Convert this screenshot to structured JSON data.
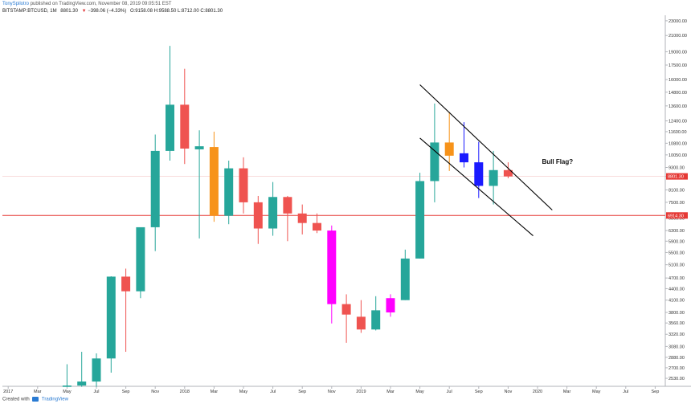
{
  "header": {
    "author": "TonySpilotro",
    "published": " published on TradingView.com, November 08, 2019 09:05:51 EST",
    "symbol": "BITSTAMP:BTCUSD, 1M",
    "last": "8801.30",
    "change_arrow": "▼",
    "change": "−398.06 (−4.33%)",
    "ohlc": "O:9158.08 H:9588.50 L:8712.00 C:8801.30"
  },
  "footer": {
    "prefix": "Created with",
    "brand": "TradingView"
  },
  "colors": {
    "up": "#26a69a",
    "down": "#ef5350",
    "orange": "#f7931a",
    "blue": "#1a1aff",
    "magenta": "#ff00ff",
    "price_line": "#e53935",
    "trendline": "#000000"
  },
  "chart_data": {
    "type": "candlestick",
    "symbol": "BITSTAMP:BTCUSD",
    "interval": "1M",
    "y_scale": "log",
    "ylim": [
      2420,
      23800
    ],
    "y_ticks": [
      2530,
      2700,
      2880,
      3080,
      3320,
      3560,
      3800,
      4100,
      4400,
      4700,
      5100,
      5500,
      5900,
      6300,
      6800,
      7500,
      8100,
      8800,
      9300,
      10050,
      10800,
      11600,
      12400,
      13600,
      14800,
      16000,
      17500,
      19000,
      21000,
      23000
    ],
    "y_tick_labels": [
      "2530.00",
      "2700.00",
      "2880.00",
      "3080.00",
      "3320.00",
      "3560.00",
      "3800.00",
      "4100.00",
      "4400.00",
      "4700.00",
      "5100.00",
      "5500.00",
      "5900.00",
      "6300.00",
      "6800.00",
      "7500.00",
      "8100.00",
      "8800.00",
      "9300.00",
      "10050.00",
      "10800.00",
      "11600.00",
      "12400.00",
      "13600.00",
      "14800.00",
      "16000.00",
      "17500.00",
      "19000.00",
      "21000.00",
      "23000.00"
    ],
    "x_labels": [
      {
        "m": 0,
        "label": "2017"
      },
      {
        "m": 2,
        "label": "Mar"
      },
      {
        "m": 4,
        "label": "May"
      },
      {
        "m": 6,
        "label": "Jul"
      },
      {
        "m": 8,
        "label": "Sep"
      },
      {
        "m": 10,
        "label": "Nov"
      },
      {
        "m": 12,
        "label": "2018"
      },
      {
        "m": 14,
        "label": "Mar"
      },
      {
        "m": 16,
        "label": "May"
      },
      {
        "m": 18,
        "label": "Jul"
      },
      {
        "m": 20,
        "label": "Sep"
      },
      {
        "m": 22,
        "label": "Nov"
      },
      {
        "m": 24,
        "label": "2019"
      },
      {
        "m": 26,
        "label": "Mar"
      },
      {
        "m": 28,
        "label": "May"
      },
      {
        "m": 30,
        "label": "Jul"
      },
      {
        "m": 32,
        "label": "Sep"
      },
      {
        "m": 34,
        "label": "Nov"
      },
      {
        "m": 36,
        "label": "2020"
      },
      {
        "m": 38,
        "label": "Mar"
      },
      {
        "m": 40,
        "label": "May"
      },
      {
        "m": 42,
        "label": "Jul"
      },
      {
        "m": 44,
        "label": "Sep"
      }
    ],
    "candles": [
      {
        "date": "2017-05",
        "open": 2400,
        "high": 2760,
        "low": 2400,
        "close": 2420,
        "color": "up"
      },
      {
        "date": "2017-06",
        "open": 2420,
        "high": 2980,
        "low": 2400,
        "close": 2480,
        "color": "up"
      },
      {
        "date": "2017-07",
        "open": 2480,
        "high": 2950,
        "low": 2400,
        "close": 2860,
        "color": "up"
      },
      {
        "date": "2017-08",
        "open": 2860,
        "high": 4750,
        "low": 2620,
        "close": 4740,
        "color": "up"
      },
      {
        "date": "2017-09",
        "open": 4740,
        "high": 4980,
        "low": 2980,
        "close": 4330,
        "color": "down"
      },
      {
        "date": "2017-10",
        "open": 4330,
        "high": 6400,
        "low": 4150,
        "close": 6430,
        "color": "up"
      },
      {
        "date": "2017-11",
        "open": 6430,
        "high": 11400,
        "low": 5550,
        "close": 10300,
        "color": "up"
      },
      {
        "date": "2017-12",
        "open": 10300,
        "high": 19700,
        "low": 9700,
        "close": 13700,
        "color": "up"
      },
      {
        "date": "2018-01",
        "open": 13700,
        "high": 17100,
        "low": 9500,
        "close": 10450,
        "color": "down"
      },
      {
        "date": "2018-02",
        "open": 10400,
        "high": 11700,
        "low": 6000,
        "close": 10600,
        "color": "up"
      },
      {
        "date": "2018-03",
        "open": 10550,
        "high": 11600,
        "low": 6650,
        "close": 6900,
        "color": "orange"
      },
      {
        "date": "2018-04",
        "open": 6900,
        "high": 9700,
        "low": 6550,
        "close": 9250,
        "color": "up"
      },
      {
        "date": "2018-05",
        "open": 9250,
        "high": 9900,
        "low": 7000,
        "close": 7500,
        "color": "down"
      },
      {
        "date": "2018-06",
        "open": 7500,
        "high": 7800,
        "low": 5800,
        "close": 6380,
        "color": "down"
      },
      {
        "date": "2018-07",
        "open": 6380,
        "high": 8500,
        "low": 6100,
        "close": 7750,
        "color": "up"
      },
      {
        "date": "2018-08",
        "open": 7750,
        "high": 7800,
        "low": 5900,
        "close": 7000,
        "color": "down"
      },
      {
        "date": "2018-09",
        "open": 7000,
        "high": 7400,
        "low": 6150,
        "close": 6600,
        "color": "down"
      },
      {
        "date": "2018-10",
        "open": 6600,
        "high": 7000,
        "low": 6200,
        "close": 6300,
        "color": "down"
      },
      {
        "date": "2018-11",
        "open": 6300,
        "high": 6500,
        "low": 3550,
        "close": 4000,
        "color": "magenta"
      },
      {
        "date": "2018-12",
        "open": 4000,
        "high": 4250,
        "low": 3150,
        "close": 3750,
        "color": "down"
      },
      {
        "date": "2019-01",
        "open": 3700,
        "high": 4100,
        "low": 3350,
        "close": 3420,
        "color": "down"
      },
      {
        "date": "2019-02",
        "open": 3420,
        "high": 4200,
        "low": 3400,
        "close": 3850,
        "color": "up"
      },
      {
        "date": "2019-03",
        "open": 4150,
        "high": 4250,
        "low": 3700,
        "close": 3800,
        "color": "magenta"
      },
      {
        "date": "2019-04",
        "open": 4100,
        "high": 5600,
        "low": 4100,
        "close": 5300,
        "color": "up"
      },
      {
        "date": "2019-05",
        "open": 5300,
        "high": 9000,
        "low": 5300,
        "close": 8550,
        "color": "up"
      },
      {
        "date": "2019-06",
        "open": 8550,
        "high": 13800,
        "low": 7500,
        "close": 10850,
        "color": "up"
      },
      {
        "date": "2019-07",
        "open": 10850,
        "high": 13100,
        "low": 9100,
        "close": 10000,
        "color": "orange"
      },
      {
        "date": "2019-08",
        "open": 10150,
        "high": 12300,
        "low": 9300,
        "close": 9600,
        "color": "blue"
      },
      {
        "date": "2019-09",
        "open": 9600,
        "high": 10900,
        "low": 7700,
        "close": 8300,
        "color": "blue"
      },
      {
        "date": "2019-10",
        "open": 8300,
        "high": 10300,
        "low": 7400,
        "close": 9150,
        "color": "up"
      },
      {
        "date": "2019-11",
        "open": 9150,
        "high": 9600,
        "low": 8700,
        "close": 8800,
        "color": "down"
      }
    ],
    "current_price": {
      "value": 8801.3,
      "label": "8801.30"
    },
    "horizontal_level": {
      "value": 6914.3,
      "label": "6914.30"
    },
    "trendlines": [
      {
        "m1": 28.0,
        "p1": 15500,
        "m2": 37.0,
        "p2": 7150
      },
      {
        "m1": 28.0,
        "p1": 11150,
        "m2": 35.7,
        "p2": 6100
      }
    ],
    "annotations": [
      {
        "m": 36.3,
        "price": 9650,
        "text": "Bull Flag?"
      }
    ],
    "grid": false
  }
}
